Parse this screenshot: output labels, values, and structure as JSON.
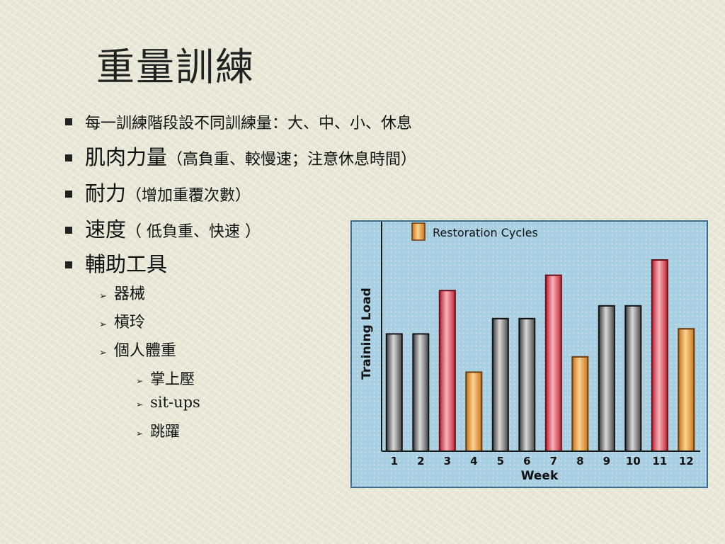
{
  "slide": {
    "title": "重量訓練",
    "bullets": {
      "b1": "每一訓練階段設不同訓練量：大、中、小、休息",
      "b2_main": "肌肉力量",
      "b2_sub": "（高負重、較慢速；注意休息時間）",
      "b3_main": "耐力",
      "b3_sub": "（增加重覆次數）",
      "b4_main": "速度",
      "b4_sub": "（ 低負重、快速 ）",
      "b5_main": "輔助工具",
      "l3": [
        "器械",
        "槓玲",
        "個人體重"
      ],
      "l4": [
        "掌上壓",
        "sit-ups",
        "跳躍"
      ]
    }
  },
  "chart_data": {
    "type": "bar",
    "legend_label": "Restoration Cycles",
    "xlabel": "Week",
    "ylabel": "Training Load",
    "categories": [
      "1",
      "2",
      "3",
      "4",
      "5",
      "6",
      "7",
      "8",
      "9",
      "10",
      "11",
      "12"
    ],
    "values": [
      46,
      46,
      63,
      31,
      52,
      52,
      69,
      37,
      57,
      57,
      75,
      48
    ],
    "bar_types": [
      "normal",
      "normal",
      "peak",
      "restoration",
      "normal",
      "normal",
      "peak",
      "restoration",
      "normal",
      "normal",
      "peak",
      "restoration"
    ],
    "ylim": [
      0,
      90
    ],
    "grid": true,
    "colors": {
      "normal": "#7d7d7d",
      "peak": "#e0505e",
      "restoration": "#f0a23e",
      "background": "#a9d0e2"
    }
  }
}
